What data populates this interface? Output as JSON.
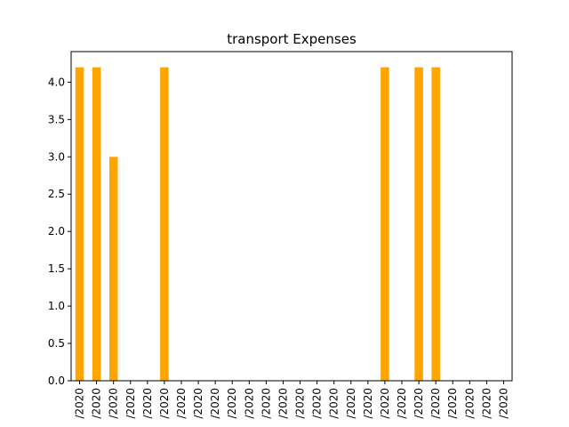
{
  "chart_data": {
    "type": "bar",
    "title": "transport Expenses",
    "xlabel": "",
    "ylabel": "",
    "categories": [
      "/2020",
      "/2020",
      "/2020",
      "/2020",
      "/2020",
      "/2020",
      "/2020",
      "/2020",
      "/2020",
      "/2020",
      "/2020",
      "/2020",
      "/2020",
      "/2020",
      "/2020",
      "/2020",
      "/2020",
      "/2020",
      "/2020",
      "/2020",
      "/2020",
      "/2020",
      "/2020",
      "/2020",
      "/2020",
      "/2020"
    ],
    "values": [
      4.2,
      4.2,
      3.0,
      0,
      0,
      4.2,
      0,
      0,
      0,
      0,
      0,
      0,
      0,
      0,
      0,
      0,
      0,
      0,
      4.2,
      0,
      4.2,
      4.2,
      0,
      0,
      0,
      0
    ],
    "ylim": [
      0,
      4.41
    ],
    "yticks": [
      0.0,
      0.5,
      1.0,
      1.5,
      2.0,
      2.5,
      3.0,
      3.5,
      4.0
    ],
    "bar_color": "#ffa500",
    "grid": false,
    "legend": false
  }
}
